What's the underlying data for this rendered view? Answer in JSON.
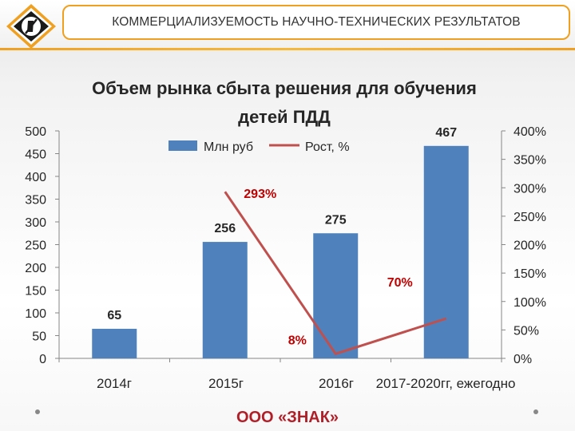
{
  "header": {
    "title": "КОММЕРЦИАЛИЗУЕМОСТЬ НАУЧНО-ТЕХНИЧЕСКИХ РЕЗУЛЬТАТОВ"
  },
  "footer": {
    "company": "ООО «ЗНАК»"
  },
  "colors": {
    "bar": "#4f81bd",
    "line": "#c0504d",
    "line_label": "#c00000",
    "accent": "#f0a020"
  },
  "chart_data": {
    "type": "bar",
    "title_lines": [
      "Объем рынка сбыта решения для обучения",
      "детей ПДД"
    ],
    "categories": [
      "2014г",
      "2015г",
      "2016г",
      "2017-2020гг, ежегодно"
    ],
    "series": [
      {
        "name": "Млн руб",
        "type": "bar",
        "axis": "left",
        "values": [
          65,
          256,
          275,
          467
        ],
        "labels": [
          "65",
          "256",
          "275",
          "467"
        ]
      },
      {
        "name": "Рост, %",
        "type": "line",
        "axis": "right",
        "values": [
          null,
          293,
          8,
          70
        ],
        "labels": [
          "",
          "293%",
          "8%",
          "70%"
        ]
      }
    ],
    "ylim": [
      0,
      500
    ],
    "yticks": [
      "0",
      "50",
      "100",
      "150",
      "200",
      "250",
      "300",
      "350",
      "400",
      "450",
      "500"
    ],
    "y2lim": [
      0,
      400
    ],
    "y2ticks": [
      "0%",
      "50%",
      "100%",
      "150%",
      "200%",
      "250%",
      "300%",
      "350%",
      "400%"
    ],
    "legend": "top-center",
    "grid": false
  }
}
